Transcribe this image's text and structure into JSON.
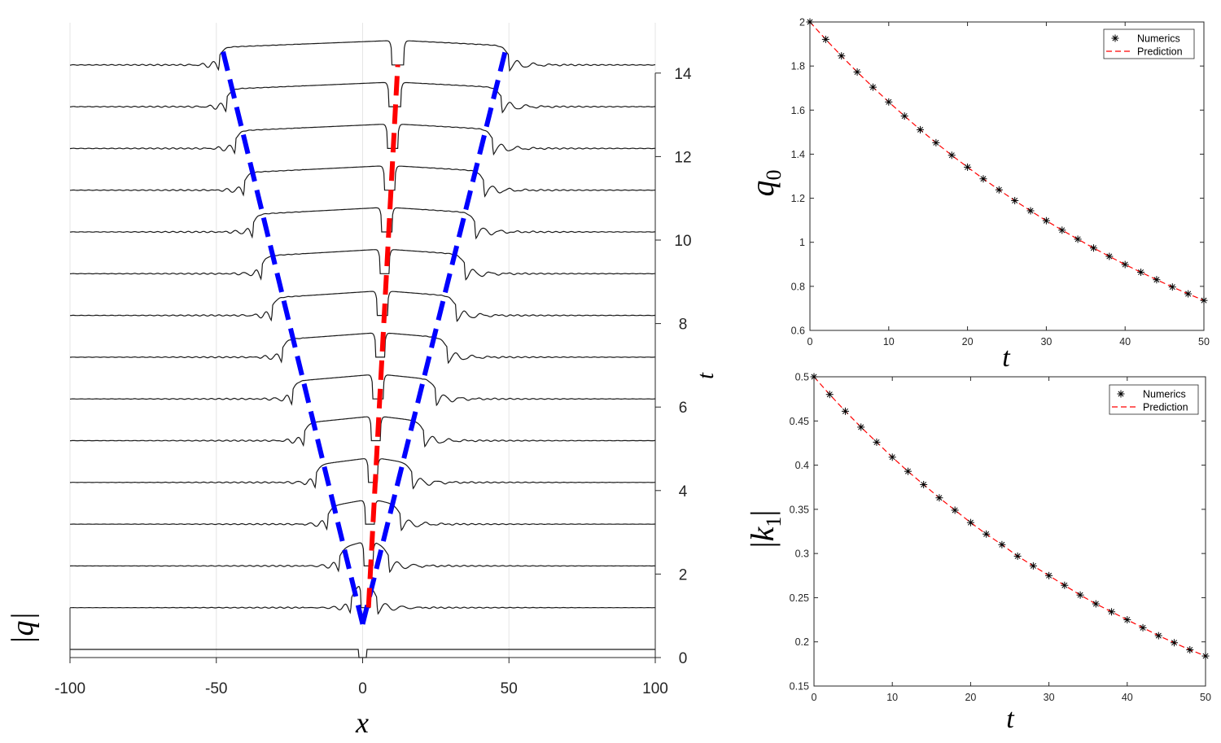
{
  "chart_data": [
    {
      "type": "line",
      "panel": "waterfall",
      "xlabel": "x",
      "ylabel_right": "t",
      "ylabel_left": "|q|",
      "xlim": [
        -100,
        100
      ],
      "ylim": [
        0,
        14
      ],
      "x_ticks": [
        -100,
        -50,
        0,
        50,
        100
      ],
      "x_tick_labels": [
        "-100",
        "-50",
        "0",
        "50",
        "100"
      ],
      "t_ticks": [
        0,
        2,
        4,
        6,
        8,
        10,
        12,
        14
      ],
      "t_tick_labels": [
        "0",
        "2",
        "4",
        "6",
        "8",
        "10",
        "12",
        "14"
      ],
      "profile_times": [
        0,
        1,
        2,
        3,
        4,
        5,
        6,
        7,
        8,
        9,
        10,
        11,
        12,
        13,
        14
      ],
      "profile_edges": [
        {
          "t": 0,
          "left_outer": -1.5,
          "left_inner": -1.5,
          "right_inner": 1.5,
          "right_outer": 1.5
        },
        {
          "t": 1,
          "left_outer": -4,
          "left_inner": -0.5,
          "right_inner": 2.5,
          "right_outer": 5
        },
        {
          "t": 2,
          "left_outer": -8,
          "left_inner": 0.5,
          "right_inner": 3.5,
          "right_outer": 9
        },
        {
          "t": 3,
          "left_outer": -12,
          "left_inner": 1,
          "right_inner": 4,
          "right_outer": 13
        },
        {
          "t": 4,
          "left_outer": -16,
          "left_inner": 2,
          "right_inner": 5,
          "right_outer": 17
        },
        {
          "t": 5,
          "left_outer": -20,
          "left_inner": 3,
          "right_inner": 6,
          "right_outer": 21
        },
        {
          "t": 6,
          "left_outer": -24,
          "left_inner": 3.5,
          "right_inner": 7,
          "right_outer": 25
        },
        {
          "t": 7,
          "left_outer": -27.5,
          "left_inner": 4.5,
          "right_inner": 7.5,
          "right_outer": 29
        },
        {
          "t": 8,
          "left_outer": -31,
          "left_inner": 5,
          "right_inner": 8.5,
          "right_outer": 32
        },
        {
          "t": 9,
          "left_outer": -34.5,
          "left_inner": 6,
          "right_inner": 9,
          "right_outer": 35
        },
        {
          "t": 10,
          "left_outer": -37.5,
          "left_inner": 6.5,
          "right_inner": 10,
          "right_outer": 38.5
        },
        {
          "t": 11,
          "left_outer": -40.5,
          "left_inner": 7.5,
          "right_inner": 11,
          "right_outer": 41.5
        },
        {
          "t": 12,
          "left_outer": -43.5,
          "left_inner": 8.5,
          "right_inner": 12,
          "right_outer": 44.5
        },
        {
          "t": 13,
          "left_outer": -46.5,
          "left_inner": 9,
          "right_inner": 13,
          "right_outer": 47.5
        },
        {
          "t": 14,
          "left_outer": -49,
          "left_inner": 10,
          "right_inner": 14,
          "right_outer": 50
        }
      ],
      "overlay_lines": [
        {
          "color": "#0000ff",
          "points": [
            [
              0,
              0.8
            ],
            [
              -48,
              14.6
            ]
          ]
        },
        {
          "color": "#0000ff",
          "points": [
            [
              0,
              0.8
            ],
            [
              49,
              14.6
            ]
          ]
        },
        {
          "color": "#ff0000",
          "points": [
            [
              2,
              1.2
            ],
            [
              12,
              14.2
            ]
          ]
        }
      ],
      "colors": {
        "profiles": "#1a1a1a",
        "outer": "#0000ff",
        "inner": "#ff0000"
      }
    },
    {
      "type": "scatter",
      "panel": "top-right",
      "xlabel": "t",
      "ylabel": "q_0",
      "xlim": [
        0,
        50
      ],
      "ylim": [
        0.6,
        2
      ],
      "x_ticks": [
        0,
        10,
        20,
        30,
        40,
        50
      ],
      "x_tick_labels": [
        "0",
        "10",
        "20",
        "30",
        "40",
        "50"
      ],
      "y_ticks": [
        0.6,
        0.8,
        1,
        1.2,
        1.4,
        1.6,
        1.8,
        2
      ],
      "y_tick_labels": [
        "0.6",
        "0.8",
        "1",
        "1.2",
        "1.4",
        "1.6",
        "1.8",
        "2"
      ],
      "legend_position": "top-right",
      "series": [
        {
          "name": "Numerics",
          "color": "#000000",
          "marker": "asterisk",
          "x": [
            0,
            2,
            4,
            6,
            8,
            10,
            12,
            14,
            16,
            18,
            20,
            22,
            24,
            26,
            28,
            30,
            32,
            34,
            36,
            38,
            40,
            42,
            44,
            46,
            48,
            50
          ],
          "y": [
            2.0,
            1.921,
            1.846,
            1.773,
            1.704,
            1.637,
            1.573,
            1.511,
            1.452,
            1.395,
            1.341,
            1.288,
            1.238,
            1.189,
            1.143,
            1.098,
            1.055,
            1.014,
            0.974,
            0.936,
            0.899,
            0.864,
            0.83,
            0.797,
            0.766,
            0.736
          ]
        },
        {
          "name": "Prediction",
          "color": "#ff0000",
          "style": "dashed",
          "x": [
            0,
            2,
            4,
            6,
            8,
            10,
            12,
            14,
            16,
            18,
            20,
            22,
            24,
            26,
            28,
            30,
            32,
            34,
            36,
            38,
            40,
            42,
            44,
            46,
            48,
            50
          ],
          "y": [
            2.0,
            1.921,
            1.846,
            1.773,
            1.704,
            1.637,
            1.573,
            1.511,
            1.452,
            1.395,
            1.341,
            1.288,
            1.238,
            1.189,
            1.143,
            1.098,
            1.055,
            1.014,
            0.974,
            0.936,
            0.899,
            0.864,
            0.83,
            0.797,
            0.766,
            0.736
          ]
        }
      ]
    },
    {
      "type": "scatter",
      "panel": "bottom-right",
      "xlabel": "t",
      "ylabel": "|k_1|",
      "xlim": [
        0,
        50
      ],
      "ylim": [
        0.15,
        0.5
      ],
      "x_ticks": [
        0,
        10,
        20,
        30,
        40,
        50
      ],
      "x_tick_labels": [
        "0",
        "10",
        "20",
        "30",
        "40",
        "50"
      ],
      "y_ticks": [
        0.15,
        0.2,
        0.25,
        0.3,
        0.35,
        0.4,
        0.45,
        0.5
      ],
      "y_tick_labels": [
        "0.15",
        "0.2",
        "0.25",
        "0.3",
        "0.35",
        "0.4",
        "0.45",
        "0.5"
      ],
      "legend_position": "top-right",
      "series": [
        {
          "name": "Numerics",
          "color": "#000000",
          "marker": "asterisk",
          "x": [
            0,
            2,
            4,
            6,
            8,
            10,
            12,
            14,
            16,
            18,
            20,
            22,
            24,
            26,
            28,
            30,
            32,
            34,
            36,
            38,
            40,
            42,
            44,
            46,
            48,
            50
          ],
          "y": [
            0.5,
            0.48,
            0.461,
            0.443,
            0.426,
            0.409,
            0.393,
            0.378,
            0.363,
            0.349,
            0.335,
            0.322,
            0.31,
            0.297,
            0.286,
            0.275,
            0.264,
            0.253,
            0.243,
            0.234,
            0.225,
            0.216,
            0.207,
            0.199,
            0.191,
            0.184
          ]
        },
        {
          "name": "Prediction",
          "color": "#ff0000",
          "style": "dashed",
          "x": [
            0,
            2,
            4,
            6,
            8,
            10,
            12,
            14,
            16,
            18,
            20,
            22,
            24,
            26,
            28,
            30,
            32,
            34,
            36,
            38,
            40,
            42,
            44,
            46,
            48,
            50
          ],
          "y": [
            0.5,
            0.48,
            0.461,
            0.443,
            0.426,
            0.409,
            0.393,
            0.378,
            0.363,
            0.349,
            0.335,
            0.322,
            0.31,
            0.297,
            0.286,
            0.275,
            0.264,
            0.253,
            0.243,
            0.234,
            0.225,
            0.216,
            0.207,
            0.199,
            0.191,
            0.184
          ]
        }
      ]
    }
  ]
}
